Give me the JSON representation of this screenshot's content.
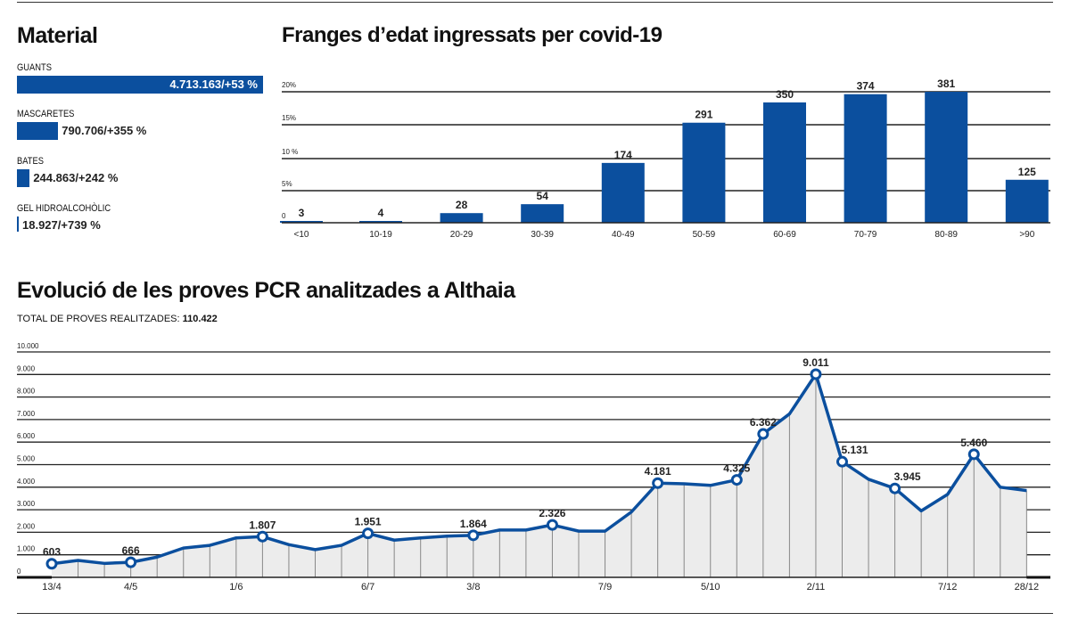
{
  "material": {
    "title": "Material",
    "items": [
      {
        "label": "GUANTS",
        "value": 4713163,
        "text": "4.713.163/+53 %"
      },
      {
        "label": "MASCARETES",
        "value": 790706,
        "text": "790.706/+355 %"
      },
      {
        "label": "BATES",
        "value": 244863,
        "text": "244.863/+242 %"
      },
      {
        "label": "GEL HIDROALCOHÒLIC",
        "value": 18927,
        "text": "18.927/+739 %"
      }
    ]
  },
  "colors": {
    "accent": "#0b4f9e",
    "fill": "#ececec",
    "grid": "#222222"
  },
  "chart_data": [
    {
      "type": "bar",
      "title": "Franges d’edat ingressats per covid-19",
      "categories": [
        "<10",
        "10-19",
        "20-29",
        "30-39",
        "40-49",
        "50-59",
        "60-69",
        "70-79",
        "80-89",
        ">90"
      ],
      "values": [
        3,
        4,
        28,
        54,
        174,
        291,
        350,
        374,
        381,
        125
      ],
      "ytick_labels": [
        "0",
        "5%",
        "10 %",
        "15%",
        "20%"
      ],
      "ylim_percent": [
        0,
        20
      ],
      "grid": true
    },
    {
      "type": "area",
      "title": "Evolució de les proves PCR analitzades a Althaia",
      "subtitle_label": "TOTAL DE PROVES REALITZADES:",
      "subtitle_value": "110.422",
      "ylim": [
        0,
        10000
      ],
      "yticks": [
        "0",
        "1.000",
        "2.000",
        "3.000",
        "4.000",
        "5.000",
        "6.000",
        "7.000",
        "8.000",
        "9.000",
        "10.000"
      ],
      "xtick_labels": [
        {
          "index": 0,
          "label": "13/4"
        },
        {
          "index": 3,
          "label": "4/5"
        },
        {
          "index": 7,
          "label": "1/6"
        },
        {
          "index": 12,
          "label": "6/7"
        },
        {
          "index": 16,
          "label": "3/8"
        },
        {
          "index": 21,
          "label": "7/9"
        },
        {
          "index": 25,
          "label": "5/10"
        },
        {
          "index": 29,
          "label": "2/11"
        },
        {
          "index": 34,
          "label": "7/12"
        },
        {
          "index": 37,
          "label": "28/12"
        }
      ],
      "values": [
        603,
        750,
        620,
        666,
        900,
        1300,
        1420,
        1750,
        1807,
        1450,
        1230,
        1420,
        1951,
        1650,
        1750,
        1830,
        1864,
        2100,
        2100,
        2326,
        2050,
        2050,
        2900,
        4181,
        4150,
        4080,
        4325,
        6362,
        7250,
        9011,
        5131,
        4350,
        3945,
        2950,
        3680,
        5460,
        4000,
        3850
      ],
      "labeled_points": [
        {
          "index": 0,
          "label": "603"
        },
        {
          "index": 3,
          "label": "666"
        },
        {
          "index": 8,
          "label": "1.807"
        },
        {
          "index": 12,
          "label": "1.951"
        },
        {
          "index": 16,
          "label": "1.864"
        },
        {
          "index": 19,
          "label": "2.326"
        },
        {
          "index": 23,
          "label": "4.181"
        },
        {
          "index": 26,
          "label": "4.325"
        },
        {
          "index": 27,
          "label": "6.362"
        },
        {
          "index": 29,
          "label": "9.011"
        },
        {
          "index": 30,
          "label": "5.131"
        },
        {
          "index": 32,
          "label": "3.945"
        },
        {
          "index": 35,
          "label": "5.460"
        }
      ],
      "grid": true
    }
  ]
}
